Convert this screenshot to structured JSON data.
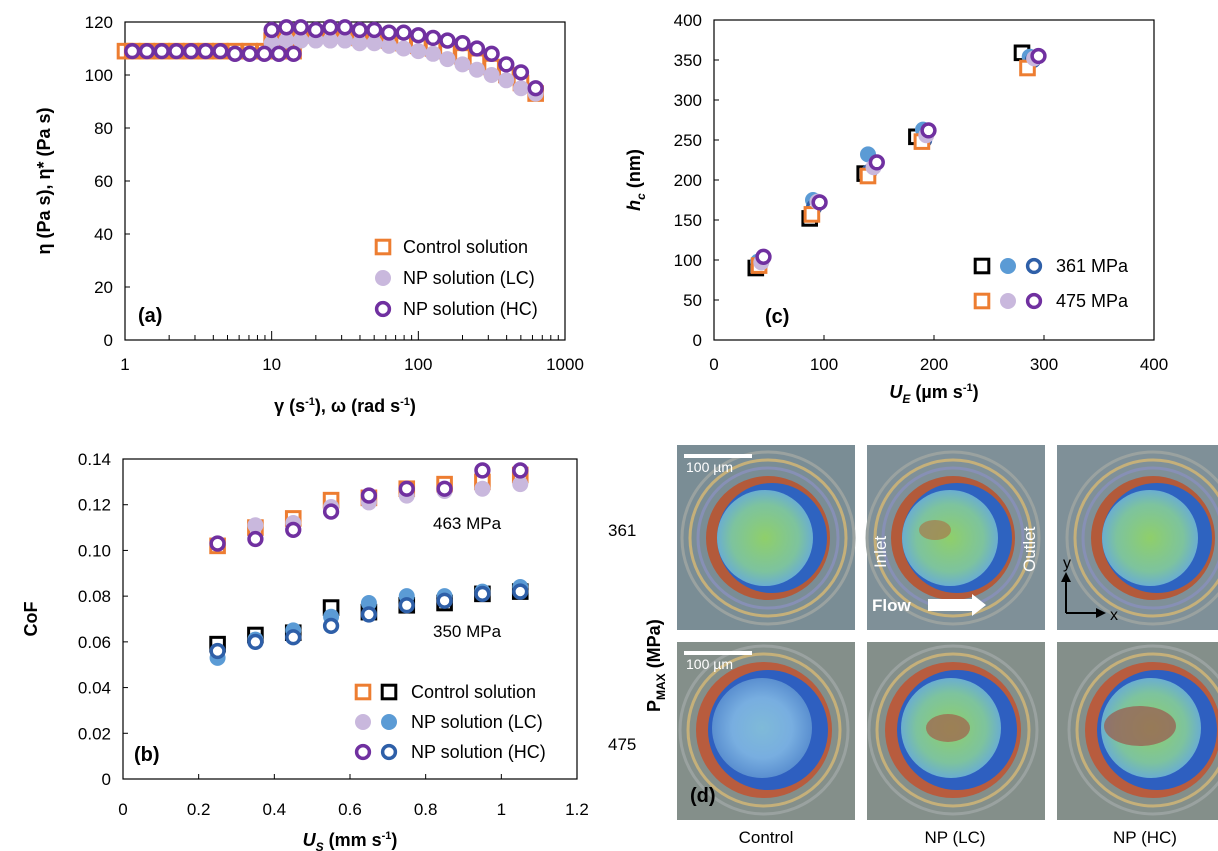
{
  "colors": {
    "orange": "#ED7D31",
    "lavender": "#C9B8DD",
    "purple": "#7030A0",
    "blue": "#5B9BD5",
    "darkblue": "#2E5FA8",
    "black": "#000000"
  },
  "chart_data": [
    {
      "id": "a",
      "type": "scatter",
      "panel_label": "(a)",
      "ylabel": "η (Pa s), η* (Pa s)",
      "xlabel": "γ (s⁻¹), ω (rad s⁻¹)",
      "xscale": "log",
      "xlim": [
        1,
        1000
      ],
      "ylim": [
        0,
        120
      ],
      "xticks": [
        1,
        10,
        100,
        1000
      ],
      "xtick_labels": [
        "1",
        "10",
        "100",
        "1000"
      ],
      "yticks": [
        0,
        20,
        40,
        60,
        80,
        100,
        120
      ],
      "grid": false,
      "legend": [
        "Control solution",
        "NP solution (LC)",
        "NP solution (HC)"
      ],
      "legend_position": "bottom-right",
      "series": [
        {
          "name": "Control solution",
          "marker": "square-open",
          "color": "#ED7D31",
          "x": [
            1,
            1.12,
            1.41,
            1.78,
            2.24,
            2.82,
            3.55,
            4.47,
            5.62,
            7.08,
            8.91,
            11.2,
            14.1,
            10,
            12.6,
            15.8,
            20,
            25.1,
            31.6,
            39.8,
            50.1,
            63.1,
            79.4,
            100,
            126,
            158,
            200,
            251,
            316,
            398,
            501,
            631
          ],
          "y": [
            109,
            109,
            109,
            109,
            109,
            109,
            109,
            109,
            109,
            109,
            109,
            109,
            109,
            113,
            114,
            115,
            115,
            115,
            115,
            114,
            114,
            113,
            112,
            111,
            110,
            109,
            107,
            105,
            103,
            100,
            97,
            93
          ]
        },
        {
          "name": "NP solution (LC)",
          "marker": "circle-filled",
          "color": "#C9B8DD",
          "x": [
            10,
            12.6,
            15.8,
            20,
            25.1,
            31.6,
            39.8,
            50.1,
            63.1,
            79.4,
            100,
            126,
            158,
            200,
            251,
            316,
            398,
            501,
            631
          ],
          "y": [
            112,
            113,
            113,
            113,
            113,
            113,
            112,
            112,
            111,
            110,
            109,
            108,
            106,
            104,
            102,
            100,
            98,
            95,
            93
          ]
        },
        {
          "name": "NP solution (HC)",
          "marker": "circle-open",
          "color": "#7030A0",
          "x": [
            1.12,
            1.41,
            1.78,
            2.24,
            2.82,
            3.55,
            4.47,
            5.62,
            7.08,
            8.91,
            11.2,
            14.1,
            10,
            12.6,
            15.8,
            20,
            25.1,
            31.6,
            39.8,
            50.1,
            63.1,
            79.4,
            100,
            126,
            158,
            200,
            251,
            316,
            398,
            501,
            631
          ],
          "y": [
            109,
            109,
            109,
            109,
            109,
            109,
            109,
            108,
            108,
            108,
            108,
            108,
            117,
            118,
            118,
            117,
            118,
            118,
            117,
            117,
            116,
            116,
            115,
            114,
            113,
            112,
            110,
            108,
            104,
            101,
            95
          ]
        }
      ]
    },
    {
      "id": "c",
      "type": "scatter",
      "panel_label": "(c)",
      "ylabel": "h_c (nm)",
      "xlabel": "U_E (µm s⁻¹)",
      "xlim": [
        0,
        400
      ],
      "ylim": [
        0,
        400
      ],
      "xticks": [
        0,
        100,
        200,
        300,
        400
      ],
      "yticks": [
        0,
        50,
        100,
        150,
        200,
        250,
        300,
        350,
        400
      ],
      "grid": false,
      "legend": [
        "361 MPa",
        "475 MPa"
      ],
      "legend_position": "bottom-right",
      "series": [
        {
          "name": "361 MPa",
          "marker": "square-open",
          "color": "#000000",
          "x": [
            38,
            87,
            137,
            184,
            280
          ],
          "y": [
            90,
            152,
            208,
            254,
            359
          ]
        },
        {
          "name": "361 MPa",
          "marker": "circle-filled",
          "color": "#5B9BD5",
          "x": [
            40,
            90,
            140,
            190,
            287
          ],
          "y": [
            98,
            175,
            232,
            263,
            354
          ]
        },
        {
          "name": "361 MPa",
          "marker": "circle-open",
          "color": "#2E5FA8",
          "x": [
            42,
            91,
            141,
            191,
            290
          ],
          "y": [
            95,
            166,
            210,
            250,
            350
          ]
        },
        {
          "name": "475 MPa",
          "marker": "square-open",
          "color": "#ED7D31",
          "x": [
            41,
            89,
            140,
            189,
            285
          ],
          "y": [
            93,
            157,
            205,
            248,
            340
          ]
        },
        {
          "name": "475 MPa",
          "marker": "circle-filled",
          "color": "#C9B8DD",
          "x": [
            43,
            94,
            145,
            193,
            291
          ],
          "y": [
            97,
            173,
            216,
            256,
            352
          ]
        },
        {
          "name": "475 MPa",
          "marker": "circle-open",
          "color": "#7030A0",
          "x": [
            45,
            96,
            148,
            195,
            295
          ],
          "y": [
            104,
            172,
            222,
            262,
            355
          ]
        }
      ]
    },
    {
      "id": "b",
      "type": "scatter",
      "panel_label": "(b)",
      "ylabel": "CoF",
      "xlabel": "U_S (mm s⁻¹)",
      "xlim": [
        0,
        1.2
      ],
      "ylim": [
        0,
        0.14
      ],
      "xticks": [
        0,
        0.2,
        0.4,
        0.6,
        0.8,
        1.0,
        1.2
      ],
      "xtick_labels": [
        "0",
        "0.2",
        "0.4",
        "0.6",
        "0.8",
        "1",
        "1.2"
      ],
      "yticks": [
        0,
        0.02,
        0.04,
        0.06,
        0.08,
        0.1,
        0.12,
        0.14
      ],
      "ytick_labels": [
        "0",
        "0.02",
        "0.04",
        "0.06",
        "0.08",
        "0.10",
        "0.12",
        "0.14"
      ],
      "grid": false,
      "annotations": [
        "463 MPa",
        "350 MPa"
      ],
      "legend": [
        "Control solution",
        "NP solution (LC)",
        "NP solution (HC)"
      ],
      "legend_position": "bottom-right",
      "series": [
        {
          "name": "Control solution",
          "marker": "square-open",
          "color": "#ED7D31",
          "x": [
            0.25,
            0.35,
            0.45,
            0.55,
            0.65,
            0.75,
            0.85,
            0.95,
            1.05
          ],
          "y": [
            0.102,
            0.11,
            0.114,
            0.122,
            0.123,
            0.127,
            0.129,
            0.13,
            0.133
          ]
        },
        {
          "name": "NP solution (LC)",
          "marker": "circle-filled",
          "color": "#C9B8DD",
          "x": [
            0.25,
            0.35,
            0.45,
            0.55,
            0.65,
            0.75,
            0.85,
            0.95,
            1.05
          ],
          "y": [
            0.103,
            0.111,
            0.112,
            0.119,
            0.121,
            0.124,
            0.126,
            0.127,
            0.129
          ]
        },
        {
          "name": "NP solution (HC)",
          "marker": "circle-open",
          "color": "#7030A0",
          "x": [
            0.25,
            0.35,
            0.45,
            0.55,
            0.65,
            0.75,
            0.85,
            0.95,
            1.05
          ],
          "y": [
            0.103,
            0.105,
            0.109,
            0.117,
            0.124,
            0.127,
            0.127,
            0.135,
            0.135
          ]
        },
        {
          "name": "Control solution",
          "marker": "square-open",
          "color": "#000000",
          "x": [
            0.25,
            0.35,
            0.45,
            0.55,
            0.65,
            0.75,
            0.85,
            0.95,
            1.05
          ],
          "y": [
            0.059,
            0.063,
            0.064,
            0.075,
            0.073,
            0.076,
            0.077,
            0.081,
            0.082
          ]
        },
        {
          "name": "NP solution (LC)",
          "marker": "circle-filled",
          "color": "#5B9BD5",
          "x": [
            0.25,
            0.35,
            0.45,
            0.55,
            0.65,
            0.75,
            0.85,
            0.95,
            1.05
          ],
          "y": [
            0.053,
            0.061,
            0.065,
            0.071,
            0.077,
            0.08,
            0.08,
            0.082,
            0.084
          ]
        },
        {
          "name": "NP solution (HC)",
          "marker": "circle-open",
          "color": "#2E5FA8",
          "x": [
            0.25,
            0.35,
            0.45,
            0.55,
            0.65,
            0.75,
            0.85,
            0.95,
            1.05
          ],
          "y": [
            0.056,
            0.06,
            0.062,
            0.067,
            0.072,
            0.076,
            0.078,
            0.081,
            0.082
          ]
        }
      ]
    }
  ],
  "panel_d": {
    "panel_label": "(d)",
    "row_axis_label": "P",
    "row_axis_label_sub": "MAX",
    "row_axis_label_unit": " (MPa)",
    "row_labels": [
      "361",
      "475"
    ],
    "col_labels": [
      "Control",
      "NP (LC)",
      "NP (HC)"
    ],
    "scale_bar": "100 µm",
    "inlet": "Inlet",
    "outlet": "Outlet",
    "flow": "Flow",
    "axis_y": "y",
    "axis_x": "x"
  }
}
